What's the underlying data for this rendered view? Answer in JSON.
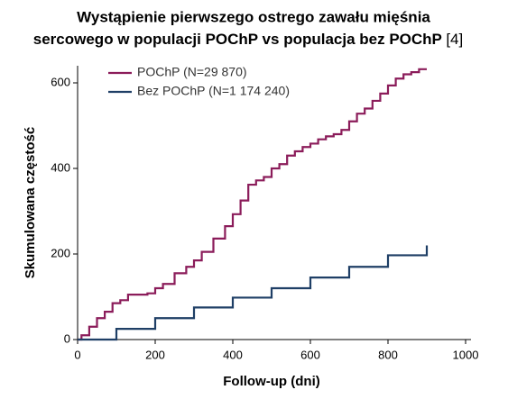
{
  "chart_data": {
    "type": "line",
    "title": [
      "Wystąpienie pierwszego ostrego zawału mięśnia",
      "sercowego w populacji POChP vs populacja bez POChP"
    ],
    "title_note": "[4]",
    "x_label": "Follow-up (dni)",
    "y_label": "Skumulowana częstość",
    "xlim": [
      0,
      1000
    ],
    "xticks": [
      0,
      200,
      400,
      600,
      800,
      1000
    ],
    "ylim": [
      0,
      640
    ],
    "yticks": [
      0,
      200,
      400,
      600
    ],
    "legend": "top-left",
    "series": [
      {
        "name": "POChP (N=29 870)",
        "color": "#8b1c5a",
        "x": [
          0,
          10,
          30,
          50,
          70,
          90,
          110,
          130,
          150,
          180,
          200,
          220,
          250,
          280,
          300,
          320,
          350,
          380,
          400,
          420,
          440,
          460,
          480,
          500,
          520,
          540,
          560,
          580,
          600,
          620,
          640,
          660,
          680,
          700,
          720,
          740,
          760,
          780,
          800,
          820,
          840,
          860,
          880,
          900
        ],
        "values": [
          0,
          10,
          30,
          50,
          65,
          85,
          92,
          105,
          105,
          108,
          120,
          130,
          155,
          170,
          185,
          205,
          236,
          265,
          293,
          325,
          362,
          372,
          380,
          400,
          410,
          430,
          440,
          450,
          458,
          468,
          475,
          480,
          490,
          510,
          528,
          540,
          558,
          575,
          594,
          610,
          620,
          625,
          632,
          632
        ]
      },
      {
        "name": "Bez POChP (N=1 174 240)",
        "color": "#1f3f66",
        "x": [
          0,
          100,
          200,
          300,
          400,
          500,
          600,
          700,
          800,
          900
        ],
        "values": [
          0,
          25,
          50,
          75,
          98,
          120,
          145,
          170,
          197,
          220
        ]
      }
    ]
  }
}
